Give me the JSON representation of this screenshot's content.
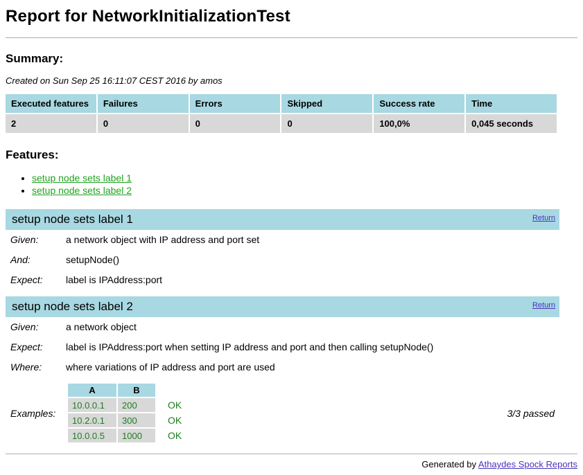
{
  "page": {
    "title": "Report for NetworkInitializationTest"
  },
  "summary": {
    "heading": "Summary:",
    "created_line": "Created on Sun Sep 25 16:11:07 CEST 2016 by amos",
    "table": {
      "headers": [
        "Executed features",
        "Failures",
        "Errors",
        "Skipped",
        "Success rate",
        "Time"
      ],
      "values": [
        "2",
        "0",
        "0",
        "0",
        "100,0%",
        "0,045 seconds"
      ]
    }
  },
  "features": {
    "heading": "Features:",
    "links": [
      "setup node sets label 1",
      "setup node sets label 2"
    ]
  },
  "feature_blocks": [
    {
      "title": "setup node sets label 1",
      "return_label": "Return",
      "steps": [
        {
          "label": "Given:",
          "text": "a network object with IP address and port set"
        },
        {
          "label": "And:",
          "text": "setupNode()"
        },
        {
          "label": "Expect:",
          "text": "label is IPAddress:port"
        }
      ]
    },
    {
      "title": "setup node sets label 2",
      "return_label": "Return",
      "steps": [
        {
          "label": "Given:",
          "text": "a network object"
        },
        {
          "label": "Expect:",
          "text": "label is IPAddress:port when setting IP address and port and then calling setupNode()"
        },
        {
          "label": "Where:",
          "text": "where variations of IP address and port are used"
        }
      ],
      "examples": {
        "label": "Examples:",
        "headers": [
          "A",
          "B"
        ],
        "rows": [
          {
            "a": "10.0.0.1",
            "b": "200",
            "result": "OK"
          },
          {
            "a": "10.2.0.1",
            "b": "300",
            "result": "OK"
          },
          {
            "a": "10.0.0.5",
            "b": "1000",
            "result": "OK"
          }
        ],
        "passed_summary": "3/3 passed"
      }
    }
  ],
  "footer": {
    "generated_by": "Generated by ",
    "link_label": "Athaydes Spock Reports"
  },
  "colors": {
    "header_bg": "#a8d8e2",
    "row_bg": "#d8d8d8",
    "link_green": "#1ea41e",
    "value_green": "#1e7d1e",
    "visited_purple": "#4733be"
  }
}
